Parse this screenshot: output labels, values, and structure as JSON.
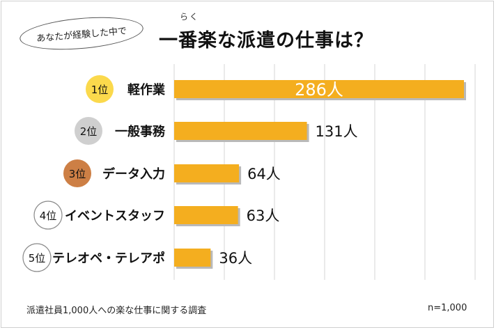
{
  "header": {
    "bubble_text": "あなたが経験した中で",
    "title": "一番楽な派遣の仕事は？",
    "ruby": "らく"
  },
  "footer": {
    "note": "派遣社員1,000人への楽な仕事に関する調査",
    "sample_size": "n=1,000"
  },
  "colors": {
    "bar": "#f4ae1f",
    "bar_shadow": "#b9b9b9",
    "rank1": "#fbd94c",
    "rank2": "#cfcfcf",
    "rank3": "#cd7f45",
    "rank_other_border": "#888888"
  },
  "chart_data": {
    "type": "bar",
    "orientation": "horizontal",
    "categories": [
      "軽作業",
      "一般事務",
      "データ入力",
      "イベントスタッフ",
      "テレオペ・テレアポ"
    ],
    "ranks": [
      "1位",
      "2位",
      "3位",
      "4位",
      "5位"
    ],
    "values": [
      286,
      131,
      64,
      63,
      36
    ],
    "value_labels": [
      "286人",
      "131人",
      "64人",
      "63人",
      "36人"
    ],
    "xlim": [
      0,
      300
    ],
    "grid": true
  }
}
